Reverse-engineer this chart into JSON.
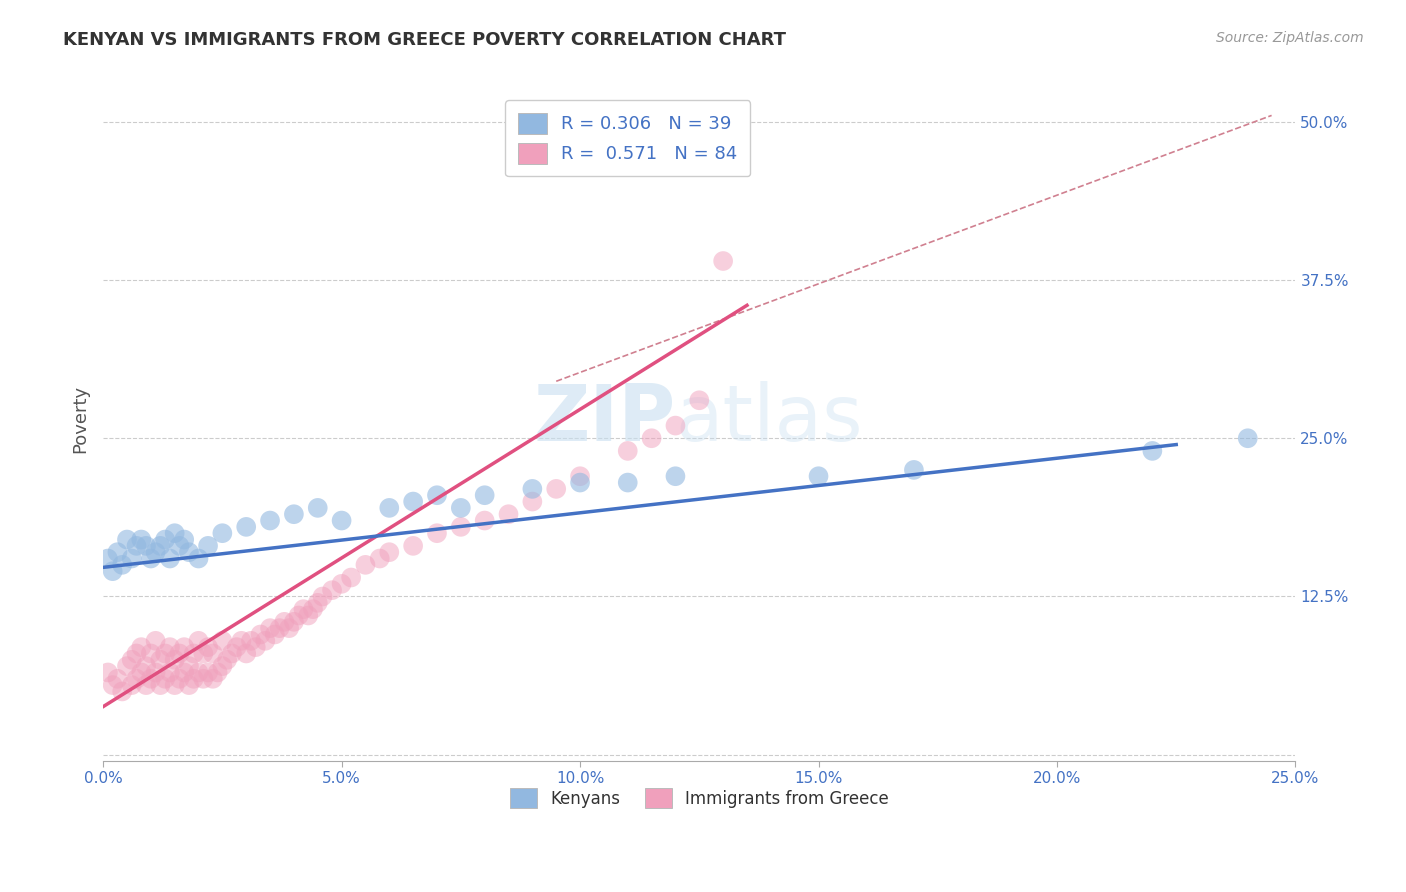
{
  "title": "KENYAN VS IMMIGRANTS FROM GREECE POVERTY CORRELATION CHART",
  "source": "Source: ZipAtlas.com",
  "ylabel": "Poverty",
  "watermark_zip": "ZIP",
  "watermark_atlas": "atlas",
  "xlim": [
    0.0,
    0.25
  ],
  "ylim": [
    -0.005,
    0.535
  ],
  "xticks": [
    0.0,
    0.05,
    0.1,
    0.15,
    0.2,
    0.25
  ],
  "xtick_labels": [
    "0.0%",
    "5.0%",
    "10.0%",
    "15.0%",
    "20.0%",
    "25.0%"
  ],
  "yticks": [
    0.0,
    0.125,
    0.25,
    0.375,
    0.5
  ],
  "ytick_labels": [
    "",
    "12.5%",
    "25.0%",
    "37.5%",
    "50.0%"
  ],
  "legend_top_labels": [
    "R = 0.306   N = 39",
    "R =  0.571   N = 84"
  ],
  "legend_bottom": [
    "Kenyans",
    "Immigrants from Greece"
  ],
  "blue_color": "#4472c4",
  "pink_color": "#e05080",
  "blue_scatter_color": "#92b8e0",
  "pink_scatter_color": "#f0a0bc",
  "blue_scatter_alpha": 0.6,
  "pink_scatter_alpha": 0.5,
  "scatter_size": 200,
  "kenyan_x": [
    0.001,
    0.002,
    0.003,
    0.004,
    0.005,
    0.006,
    0.007,
    0.008,
    0.009,
    0.01,
    0.011,
    0.012,
    0.013,
    0.014,
    0.015,
    0.016,
    0.017,
    0.018,
    0.02,
    0.022,
    0.025,
    0.03,
    0.035,
    0.04,
    0.045,
    0.05,
    0.06,
    0.065,
    0.07,
    0.075,
    0.08,
    0.09,
    0.1,
    0.11,
    0.12,
    0.15,
    0.17,
    0.22,
    0.24
  ],
  "kenyan_y": [
    0.155,
    0.145,
    0.16,
    0.15,
    0.17,
    0.155,
    0.165,
    0.17,
    0.165,
    0.155,
    0.16,
    0.165,
    0.17,
    0.155,
    0.175,
    0.165,
    0.17,
    0.16,
    0.155,
    0.165,
    0.175,
    0.18,
    0.185,
    0.19,
    0.195,
    0.185,
    0.195,
    0.2,
    0.205,
    0.195,
    0.205,
    0.21,
    0.215,
    0.215,
    0.22,
    0.22,
    0.225,
    0.24,
    0.25
  ],
  "greece_x": [
    0.001,
    0.002,
    0.003,
    0.004,
    0.005,
    0.006,
    0.006,
    0.007,
    0.007,
    0.008,
    0.008,
    0.009,
    0.009,
    0.01,
    0.01,
    0.011,
    0.011,
    0.012,
    0.012,
    0.013,
    0.013,
    0.014,
    0.014,
    0.015,
    0.015,
    0.016,
    0.016,
    0.017,
    0.017,
    0.018,
    0.018,
    0.019,
    0.019,
    0.02,
    0.02,
    0.021,
    0.021,
    0.022,
    0.022,
    0.023,
    0.023,
    0.024,
    0.025,
    0.025,
    0.026,
    0.027,
    0.028,
    0.029,
    0.03,
    0.031,
    0.032,
    0.033,
    0.034,
    0.035,
    0.036,
    0.037,
    0.038,
    0.039,
    0.04,
    0.041,
    0.042,
    0.043,
    0.044,
    0.045,
    0.046,
    0.048,
    0.05,
    0.052,
    0.055,
    0.058,
    0.06,
    0.065,
    0.07,
    0.075,
    0.08,
    0.085,
    0.09,
    0.095,
    0.1,
    0.11,
    0.115,
    0.12,
    0.125,
    0.13
  ],
  "greece_y": [
    0.065,
    0.055,
    0.06,
    0.05,
    0.07,
    0.055,
    0.075,
    0.06,
    0.08,
    0.065,
    0.085,
    0.055,
    0.07,
    0.06,
    0.08,
    0.065,
    0.09,
    0.055,
    0.075,
    0.06,
    0.08,
    0.065,
    0.085,
    0.055,
    0.075,
    0.06,
    0.08,
    0.065,
    0.085,
    0.055,
    0.07,
    0.06,
    0.08,
    0.065,
    0.09,
    0.06,
    0.08,
    0.065,
    0.085,
    0.06,
    0.08,
    0.065,
    0.07,
    0.09,
    0.075,
    0.08,
    0.085,
    0.09,
    0.08,
    0.09,
    0.085,
    0.095,
    0.09,
    0.1,
    0.095,
    0.1,
    0.105,
    0.1,
    0.105,
    0.11,
    0.115,
    0.11,
    0.115,
    0.12,
    0.125,
    0.13,
    0.135,
    0.14,
    0.15,
    0.155,
    0.16,
    0.165,
    0.175,
    0.18,
    0.185,
    0.19,
    0.2,
    0.21,
    0.22,
    0.24,
    0.25,
    0.26,
    0.28,
    0.39
  ],
  "blue_trend_x": [
    0.0,
    0.225
  ],
  "blue_trend_y": [
    0.148,
    0.245
  ],
  "pink_trend_x": [
    0.0,
    0.135
  ],
  "pink_trend_y": [
    0.038,
    0.355
  ],
  "dashed_trend_x": [
    0.095,
    0.245
  ],
  "dashed_trend_y": [
    0.295,
    0.505
  ],
  "dashed_color": "#d08090",
  "grid_color": "#cccccc",
  "background_color": "#ffffff",
  "title_color": "#333333",
  "axis_label_color": "#555555",
  "tick_color": "#4472c4"
}
